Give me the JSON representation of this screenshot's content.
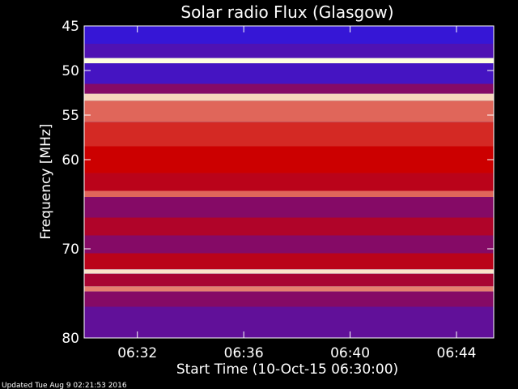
{
  "chart_data": {
    "type": "heatmap",
    "title": "Solar radio Flux (Glasgow)",
    "xlabel": "Start Time (10-Oct-15 06:30:00)",
    "ylabel": "Frequency [MHz]",
    "x_range_minutes": [
      0,
      15.4
    ],
    "y_range_mhz": [
      45,
      80
    ],
    "x_ticks": [
      {
        "minute": 2,
        "label": "06:32"
      },
      {
        "minute": 6,
        "label": "06:36"
      },
      {
        "minute": 10,
        "label": "06:40"
      },
      {
        "minute": 14,
        "label": "06:44"
      }
    ],
    "y_ticks": [
      {
        "mhz": 45,
        "label": "45"
      },
      {
        "mhz": 50,
        "label": "50"
      },
      {
        "mhz": 55,
        "label": "55"
      },
      {
        "mhz": 60,
        "label": "60"
      },
      {
        "mhz": 70,
        "label": "70"
      },
      {
        "mhz": 80,
        "label": "80"
      }
    ],
    "intensity_bands_mhz": [
      {
        "from": 45,
        "to": 47,
        "level": 0.08
      },
      {
        "from": 47,
        "to": 48.6,
        "level": 0.15
      },
      {
        "from": 48.6,
        "to": 49.2,
        "level": 1.0
      },
      {
        "from": 49.2,
        "to": 51.5,
        "level": 0.12
      },
      {
        "from": 51.5,
        "to": 52.6,
        "level": 0.3
      },
      {
        "from": 52.6,
        "to": 53.4,
        "level": 0.92
      },
      {
        "from": 53.4,
        "to": 55.8,
        "level": 0.7
      },
      {
        "from": 55.8,
        "to": 58.5,
        "level": 0.58
      },
      {
        "from": 58.5,
        "to": 61.5,
        "level": 0.5
      },
      {
        "from": 61.5,
        "to": 63.5,
        "level": 0.45
      },
      {
        "from": 63.5,
        "to": 64.2,
        "level": 0.7
      },
      {
        "from": 64.2,
        "to": 66.5,
        "level": 0.3
      },
      {
        "from": 66.5,
        "to": 68.5,
        "level": 0.42
      },
      {
        "from": 68.5,
        "to": 70.5,
        "level": 0.3
      },
      {
        "from": 70.5,
        "to": 72.3,
        "level": 0.45
      },
      {
        "from": 72.3,
        "to": 72.8,
        "level": 0.95
      },
      {
        "from": 72.8,
        "to": 74.2,
        "level": 0.4
      },
      {
        "from": 74.2,
        "to": 74.8,
        "level": 0.75
      },
      {
        "from": 74.8,
        "to": 76.5,
        "level": 0.3
      },
      {
        "from": 76.5,
        "to": 80,
        "level": 0.2
      }
    ],
    "colors": {
      "low": "#1a1aff",
      "mid": "#cc0000",
      "high": "#ffffe0",
      "background": "#000000"
    }
  },
  "footer": {
    "updated_text": "Updated Tue Aug  9 02:21:53 2016"
  }
}
